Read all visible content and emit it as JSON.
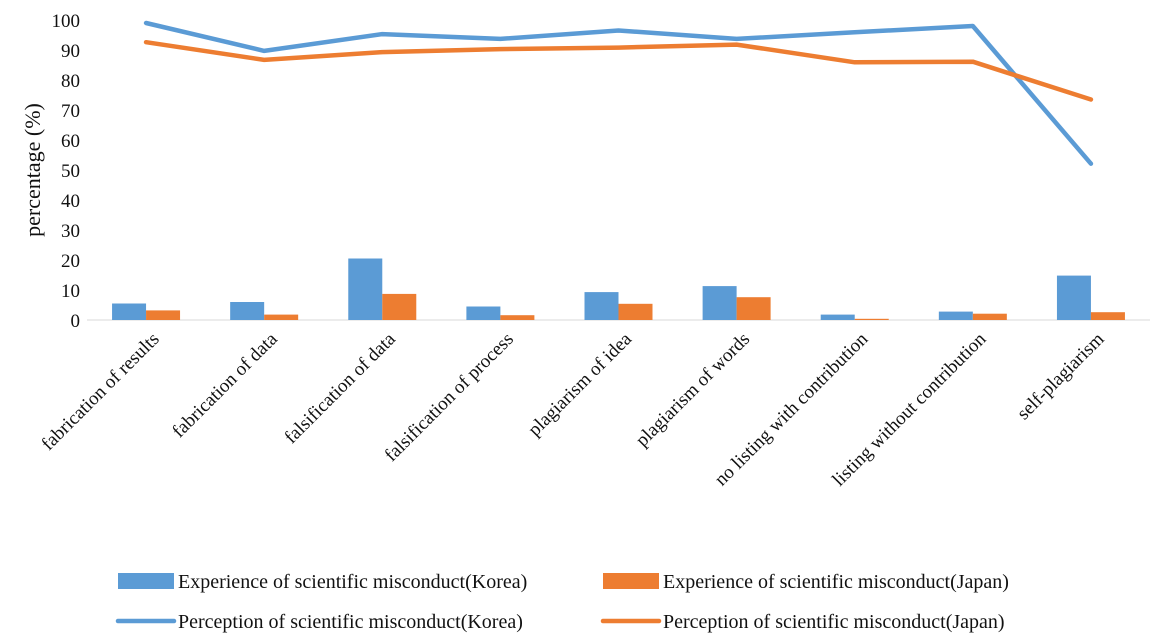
{
  "chart_data": {
    "type": "bar",
    "title": "",
    "xlabel": "",
    "ylabel": "percentage (%)",
    "ylim": [
      0,
      100
    ],
    "yticks": [
      0,
      10,
      20,
      30,
      40,
      50,
      60,
      70,
      80,
      90,
      100
    ],
    "grid": false,
    "legend_position": "bottom",
    "categories": [
      "fabrication of results",
      "fabrication of data",
      "falsification of data",
      "falsification of process",
      "plagiarism of idea",
      "plagiarism of words",
      "no listing with contribution",
      "listing without contribution",
      "self-plagiarism"
    ],
    "series": [
      {
        "name": "Experience of scientific misconduct(Korea)",
        "kind": "bar",
        "color": "#5B9BD5",
        "values": [
          5.5,
          6.0,
          20.5,
          4.5,
          9.3,
          11.3,
          1.8,
          2.8,
          14.8
        ]
      },
      {
        "name": "Experience of scientific misconduct(Japan)",
        "kind": "bar",
        "color": "#ED7D31",
        "values": [
          3.2,
          1.8,
          8.7,
          1.6,
          5.4,
          7.6,
          0.4,
          2.1,
          2.6
        ]
      },
      {
        "name": "Perception of scientific misconduct(Korea)",
        "kind": "line",
        "color": "#5B9BD5",
        "values": [
          99.0,
          89.7,
          95.3,
          93.7,
          96.5,
          93.7,
          95.9,
          98.0,
          52.1
        ]
      },
      {
        "name": "Perception of scientific misconduct(Japan)",
        "kind": "line",
        "color": "#ED7D31",
        "values": [
          92.6,
          86.7,
          89.3,
          90.3,
          90.8,
          91.8,
          85.9,
          86.1,
          73.5
        ]
      }
    ]
  }
}
